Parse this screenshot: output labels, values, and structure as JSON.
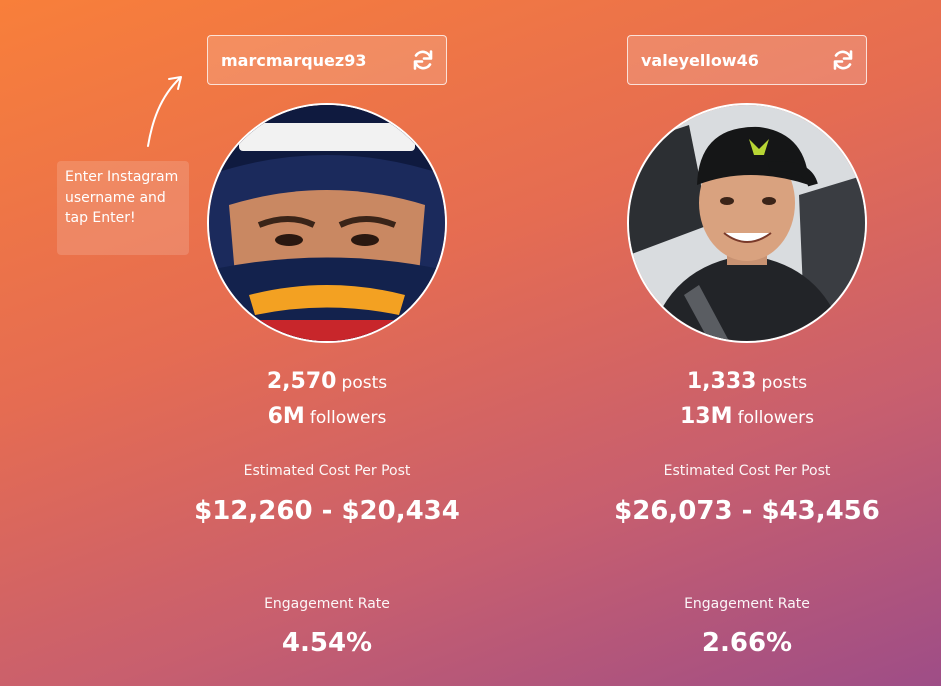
{
  "hint": {
    "text": "Enter Instagram username and tap Enter!"
  },
  "icons": {
    "refresh": "refresh-icon",
    "arrow": "curved-arrow-icon"
  },
  "profiles": [
    {
      "username": "marcmarquez93",
      "posts_count": "2,570",
      "posts_unit": "posts",
      "followers_count": "6M",
      "followers_unit": "followers",
      "cost_label": "Estimated Cost Per Post",
      "cost_value": "$12,260 - $20,434",
      "engagement_label": "Engagement Rate",
      "engagement_value": "4.54%"
    },
    {
      "username": "valeyellow46",
      "posts_count": "1,333",
      "posts_unit": "posts",
      "followers_count": "13M",
      "followers_unit": "followers",
      "cost_label": "Estimated Cost Per Post",
      "cost_value": "$26,073 - $43,456",
      "engagement_label": "Engagement Rate",
      "engagement_value": "2.66%"
    }
  ]
}
